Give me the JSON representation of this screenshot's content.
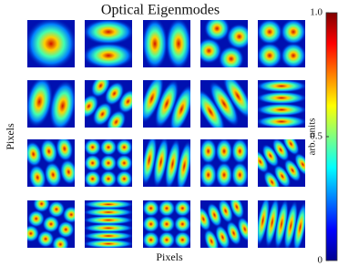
{
  "chart_data": {
    "type": "image-grid",
    "title": "Optical Eigenmodes",
    "xlabel": "Pixels",
    "ylabel": "Pixels",
    "colorbar_label": "arb. units",
    "colormap": "jet",
    "rows": 4,
    "cols": 5,
    "clim": [
      0,
      1
    ],
    "cticks": [
      0,
      {
        "value": 0.5,
        "label": "0.5"
      },
      {
        "value": 1,
        "label": "1.0"
      }
    ]
  }
}
